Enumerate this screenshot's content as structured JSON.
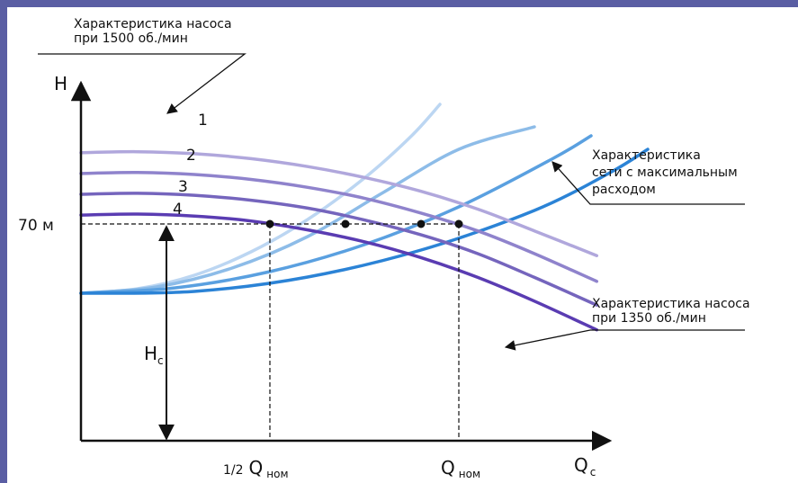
{
  "chart_data": {
    "type": "line",
    "title": "",
    "xlabel": {
      "main": "Q",
      "sub": "c"
    },
    "ylabel": "H",
    "y_tick_label": "70 м",
    "x_ticks": [
      {
        "prefix": "1/2",
        "main": "Q",
        "sub": "ном"
      },
      {
        "prefix": "",
        "main": "Q",
        "sub": "ном"
      }
    ],
    "hc_label": {
      "main": "H",
      "sub": "c"
    },
    "pump_curves": [
      {
        "label": "1",
        "color": "#b0a7dc",
        "x": [
          0,
          0.3,
          0.6,
          0.9,
          1.2,
          1.5,
          1.8,
          2.1,
          2.4,
          2.73
        ],
        "y": [
          142,
          143,
          141,
          136,
          128,
          117,
          103,
          85,
          63,
          38
        ]
      },
      {
        "label": "2",
        "color": "#8f83cc",
        "x": [
          0,
          0.3,
          0.6,
          0.9,
          1.2,
          1.5,
          1.8,
          2.1,
          2.4,
          2.73
        ],
        "y": [
          121,
          122,
          120,
          115,
          107,
          96,
          81,
          63,
          40,
          12
        ]
      },
      {
        "label": "3",
        "color": "#7565bd",
        "x": [
          0,
          0.3,
          0.6,
          0.9,
          1.2,
          1.5,
          1.8,
          2.1,
          2.4,
          2.73
        ],
        "y": [
          100,
          101,
          99,
          94,
          86,
          74,
          59,
          40,
          16,
          -12
        ]
      },
      {
        "label": "4",
        "color": "#5a3cb2",
        "x": [
          0,
          0.3,
          0.6,
          0.9,
          1.2,
          1.5,
          1.8,
          2.1,
          2.4,
          2.73
        ],
        "y": [
          79,
          80,
          78,
          73,
          64,
          52,
          36,
          16,
          -8,
          -37
        ]
      }
    ],
    "system_curves": [
      {
        "color": "#bcd6f2",
        "x": [
          0,
          0.3,
          0.6,
          0.9,
          1.2,
          1.5,
          1.75,
          1.9
        ],
        "y": [
          0,
          5,
          20,
          46,
          82,
          128,
          175,
          210
        ]
      },
      {
        "color": "#8dbce8",
        "x": [
          0,
          0.4,
          0.8,
          1.2,
          1.6,
          2.0,
          2.4
        ],
        "y": [
          0,
          7,
          28,
          63,
          112,
          160,
          185
        ]
      },
      {
        "color": "#5aa0e0",
        "x": [
          0,
          0.5,
          1.0,
          1.5,
          2.0,
          2.5,
          2.7
        ],
        "y": [
          0,
          6,
          24,
          54,
          96,
          150,
          175
        ]
      },
      {
        "color": "#2b83d6",
        "x": [
          0,
          0.6,
          1.2,
          1.8,
          2.4,
          2.8,
          3.0
        ],
        "y": [
          0,
          2,
          18,
          48,
          92,
          134,
          160
        ]
      }
    ],
    "operating_points": [
      {
        "x": 1.0,
        "y": 70
      },
      {
        "x": 1.4,
        "y": 70
      },
      {
        "x": 1.8,
        "y": 70
      },
      {
        "x": 2.0,
        "y": 70
      }
    ],
    "hline_y": 70,
    "vlines_x": [
      1.0,
      2.0
    ],
    "xlim": [
      0,
      3.0
    ],
    "ylim": [
      -45,
      150
    ],
    "annotations": [
      {
        "lines": [
          "Характеристика насоса",
          "при 1500 об./мин"
        ]
      },
      {
        "lines": [
          "Характеристика",
          "сети с максимальным",
          "расходом"
        ]
      },
      {
        "lines": [
          "Характеристика насоса",
          "при 1350 об./мин"
        ]
      }
    ]
  }
}
